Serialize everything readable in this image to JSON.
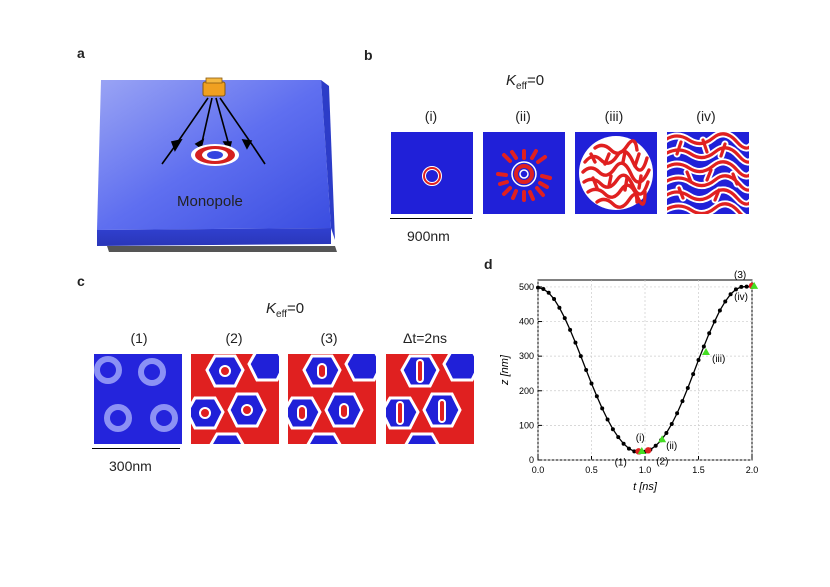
{
  "panels": {
    "a": {
      "label": "a",
      "monopole_label": "Monopole"
    },
    "b": {
      "label": "b",
      "keff_symbol": "K",
      "keff_sub": "eff",
      "keff_value": "=0",
      "tiles": [
        "(i)",
        "(ii)",
        "(iii)",
        "(iv)"
      ],
      "scale_label": "900nm"
    },
    "c": {
      "label": "c",
      "keff_symbol": "K",
      "keff_sub": "eff",
      "keff_value": "=0",
      "tiles": [
        "(1)",
        "(2)",
        "(3)",
        "Δt=2ns"
      ],
      "scale_label": "300nm"
    },
    "d": {
      "label": "d"
    }
  },
  "colors": {
    "blue": "#2020d8",
    "red": "#e02020",
    "white": "#ffffff",
    "green": "#44dd22"
  },
  "chart_data": {
    "type": "line",
    "xlabel": "t [ns]",
    "ylabel": "z [nm]",
    "xlim": [
      0,
      2.0
    ],
    "ylim": [
      0,
      520
    ],
    "xticks": [
      "0.0",
      "0.5",
      "1.0",
      "1.5",
      "2.0"
    ],
    "yticks": [
      "0",
      "100",
      "200",
      "300",
      "400",
      "500"
    ],
    "grid": true,
    "series": [
      {
        "x": [
          0.0,
          0.05,
          0.1,
          0.15,
          0.2,
          0.25,
          0.3,
          0.35,
          0.4,
          0.45,
          0.5,
          0.55,
          0.6,
          0.65,
          0.7,
          0.75,
          0.8,
          0.85,
          0.9,
          0.95,
          1.0,
          1.05,
          1.1,
          1.15,
          1.2,
          1.25,
          1.3,
          1.35,
          1.4,
          1.45,
          1.5,
          1.55,
          1.6,
          1.65,
          1.7,
          1.75,
          1.8,
          1.85,
          1.9,
          1.95,
          2.0
        ],
        "values": [
          498,
          494,
          483,
          465,
          440,
          410,
          376,
          339,
          300,
          260,
          221,
          184,
          149,
          117,
          89,
          66,
          47,
          33,
          25,
          22,
          24,
          30,
          41,
          57,
          78,
          104,
          135,
          170,
          208,
          248,
          289,
          328,
          366,
          400,
          432,
          458,
          479,
          493,
          500,
          501,
          500
        ]
      }
    ],
    "markers": [
      {
        "label": "(1)",
        "x": 0.94,
        "y": 25,
        "color": "#e02020",
        "shape": "dot"
      },
      {
        "label": "(2)",
        "x": 1.03,
        "y": 28,
        "color": "#e02020",
        "shape": "dot"
      },
      {
        "label": "(3)",
        "x": 2.0,
        "y": 503,
        "color": "#e02020",
        "shape": "dot"
      },
      {
        "label": "(i)",
        "x": 0.97,
        "y": 26,
        "color": "#44dd22",
        "shape": "triangle"
      },
      {
        "label": "(ii)",
        "x": 1.16,
        "y": 60,
        "color": "#44dd22",
        "shape": "triangle"
      },
      {
        "label": "(iii)",
        "x": 1.57,
        "y": 312,
        "color": "#44dd22",
        "shape": "triangle"
      },
      {
        "label": "(iv)",
        "x": 2.02,
        "y": 503,
        "color": "#44dd22",
        "shape": "triangle"
      }
    ]
  }
}
